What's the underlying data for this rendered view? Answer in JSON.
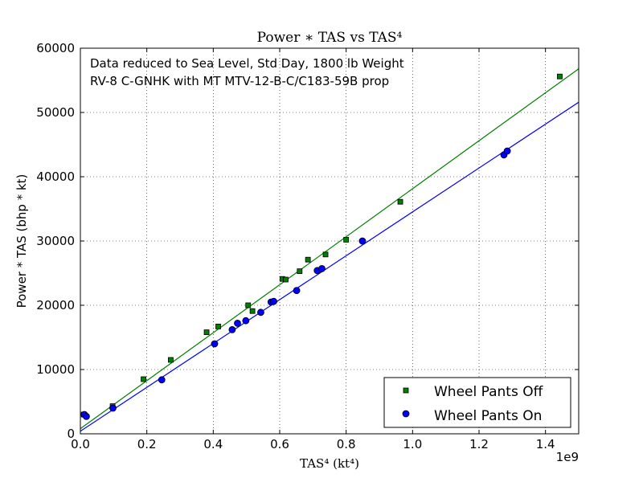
{
  "chart_data": {
    "type": "scatter",
    "title": "Power  ∗  TAS  vs  TAS⁴",
    "xlabel": "TAS⁴   (kt⁴)",
    "ylabel": "Power * TAS (bhp * kt)",
    "x_multiplier_label": "1e9",
    "xlim": [
      0.0,
      1.5
    ],
    "ylim": [
      0,
      60000
    ],
    "x_ticks": [
      0.0,
      0.2,
      0.4,
      0.6,
      0.8,
      1.0,
      1.2,
      1.4
    ],
    "x_tick_labels": [
      "0.0",
      "0.2",
      "0.4",
      "0.6",
      "0.8",
      "1.0",
      "1.2",
      "1.4"
    ],
    "y_ticks": [
      0,
      10000,
      20000,
      30000,
      40000,
      50000,
      60000
    ],
    "y_tick_labels": [
      "0",
      "10000",
      "20000",
      "30000",
      "40000",
      "50000",
      "60000"
    ],
    "grid": true,
    "legend_position": "bottom-right",
    "annotations": [
      "Data reduced to Sea Level, Std Day, 1800 lb Weight",
      "RV-8 C-GNHK with MT MTV-12-B-C/C183-59B prop"
    ],
    "series": [
      {
        "name": "Wheel Pants Off",
        "marker": "square",
        "color": "#007f00",
        "points": [
          [
            0.01,
            3000
          ],
          [
            0.097,
            4300
          ],
          [
            0.19,
            8500
          ],
          [
            0.272,
            11500
          ],
          [
            0.38,
            15800
          ],
          [
            0.415,
            16700
          ],
          [
            0.505,
            20000
          ],
          [
            0.518,
            19100
          ],
          [
            0.608,
            24100
          ],
          [
            0.618,
            24000
          ],
          [
            0.66,
            25300
          ],
          [
            0.685,
            27100
          ],
          [
            0.738,
            27900
          ],
          [
            0.8,
            30200
          ],
          [
            0.963,
            36100
          ],
          [
            1.443,
            55600
          ]
        ],
        "fit_line": [
          [
            0.0,
            800
          ],
          [
            1.5,
            56800
          ]
        ]
      },
      {
        "name": "Wheel Pants On",
        "marker": "circle",
        "color": "#0000ff",
        "points": [
          [
            0.012,
            3000
          ],
          [
            0.018,
            2700
          ],
          [
            0.098,
            4000
          ],
          [
            0.245,
            8400
          ],
          [
            0.404,
            14000
          ],
          [
            0.457,
            16200
          ],
          [
            0.473,
            17200
          ],
          [
            0.498,
            17600
          ],
          [
            0.543,
            18900
          ],
          [
            0.574,
            20500
          ],
          [
            0.582,
            20600
          ],
          [
            0.651,
            22300
          ],
          [
            0.713,
            25400
          ],
          [
            0.727,
            25700
          ],
          [
            0.849,
            30000
          ],
          [
            1.275,
            43400
          ],
          [
            1.285,
            44000
          ]
        ],
        "fit_line": [
          [
            0.0,
            400
          ],
          [
            1.5,
            51600
          ]
        ]
      }
    ]
  }
}
